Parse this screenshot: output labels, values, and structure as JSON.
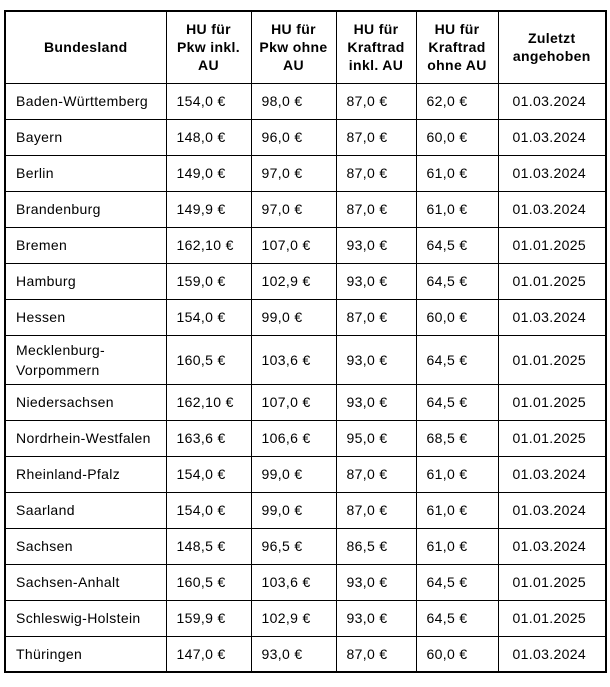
{
  "chart_data": {
    "type": "table",
    "title": "",
    "columns": [
      "Bundesland",
      "HU für Pkw inkl. AU",
      "HU für Pkw ohne AU",
      "HU für Kraftrad inkl. AU",
      "HU für Kraftrad ohne AU",
      "Zuletzt angehoben"
    ],
    "rows": [
      [
        "Baden-Württemberg",
        "154,0 €",
        "98,0 €",
        "87,0 €",
        "62,0 €",
        "01.03.2024"
      ],
      [
        "Bayern",
        "148,0 €",
        "96,0 €",
        "87,0 €",
        "60,0 €",
        "01.03.2024"
      ],
      [
        "Berlin",
        "149,0 €",
        "97,0 €",
        "87,0 €",
        "61,0 €",
        "01.03.2024"
      ],
      [
        "Brandenburg",
        "149,9 €",
        "97,0 €",
        "87,0 €",
        "61,0 €",
        "01.03.2024"
      ],
      [
        "Bremen",
        "162,10 €",
        "107,0 €",
        "93,0 €",
        "64,5 €",
        "01.01.2025"
      ],
      [
        "Hamburg",
        "159,0 €",
        "102,9 €",
        "93,0 €",
        "64,5 €",
        "01.01.2025"
      ],
      [
        "Hessen",
        "154,0 €",
        "99,0 €",
        "87,0 €",
        "60,0 €",
        "01.03.2024"
      ],
      [
        "Mecklenburg-Vorpommern",
        "160,5 €",
        "103,6 €",
        "93,0 €",
        "64,5 €",
        "01.01.2025"
      ],
      [
        "Niedersachsen",
        "162,10 €",
        "107,0 €",
        "93,0 €",
        "64,5 €",
        "01.01.2025"
      ],
      [
        "Nordrhein-Westfalen",
        "163,6 €",
        "106,6 €",
        "95,0 €",
        "68,5 €",
        "01.01.2025"
      ],
      [
        "Rheinland-Pfalz",
        "154,0 €",
        "99,0 €",
        "87,0 €",
        "61,0 €",
        "01.03.2024"
      ],
      [
        "Saarland",
        "154,0 €",
        "99,0 €",
        "87,0 €",
        "61,0 €",
        "01.03.2024"
      ],
      [
        "Sachsen",
        "148,5 €",
        "96,5 €",
        "86,5 €",
        "61,0 €",
        "01.03.2024"
      ],
      [
        "Sachsen-Anhalt",
        "160,5 €",
        "103,6 €",
        "93,0 €",
        "64,5 €",
        "01.01.2025"
      ],
      [
        "Schleswig-Holstein",
        "159,9 €",
        "102,9 €",
        "93,0 €",
        "64,5 €",
        "01.01.2025"
      ],
      [
        "Thüringen",
        "147,0 €",
        "93,0 €",
        "87,0 €",
        "60,0 €",
        "01.03.2024"
      ]
    ],
    "layout_hints": {
      "grid": true,
      "header_bold": true,
      "border_color": "#000000",
      "background": "#ffffff",
      "text_color": "#000000"
    }
  }
}
